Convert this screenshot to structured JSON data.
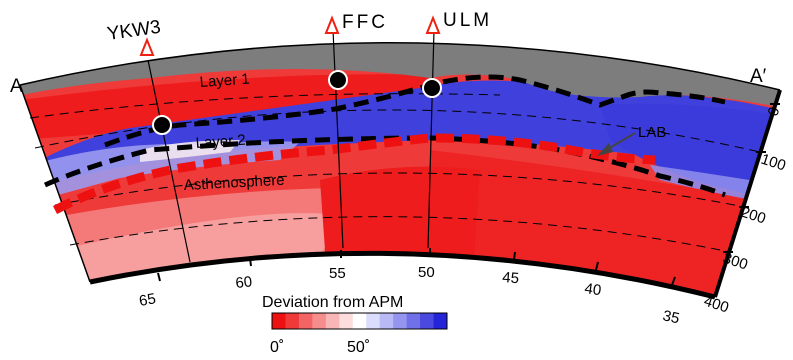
{
  "section": {
    "start_label": "A",
    "end_label": "A′"
  },
  "stations": [
    {
      "name": "YKW3"
    },
    {
      "name": "FFC"
    },
    {
      "name": "ULM"
    }
  ],
  "layers": {
    "layer1": "Layer 1",
    "layer2": "Layer 2",
    "asthenosphere": "Asthenosphere",
    "lab": "LAB"
  },
  "depth_axis": {
    "ticks": [
      "0",
      "100",
      "200",
      "300",
      "400"
    ]
  },
  "longitude_axis": {
    "ticks": [
      "65",
      "60",
      "55",
      "50",
      "45",
      "40",
      "35"
    ]
  },
  "legend": {
    "title": "Deviation from APM",
    "min_label": "0˚",
    "mid_label": "50˚",
    "colors": [
      "#ee1111",
      "#f03a3a",
      "#f36464",
      "#f68d8d",
      "#f9b6b6",
      "#fcdcdc",
      "#ffffff",
      "#dcdcfc",
      "#b9b9f6",
      "#9595ef",
      "#7070e8",
      "#4a4ae0",
      "#2424d8"
    ]
  },
  "colors": {
    "crust": "#7d7d7d",
    "red": "#ee1c1c",
    "blue": "#3535d8",
    "lab_line": "#ee1111"
  }
}
